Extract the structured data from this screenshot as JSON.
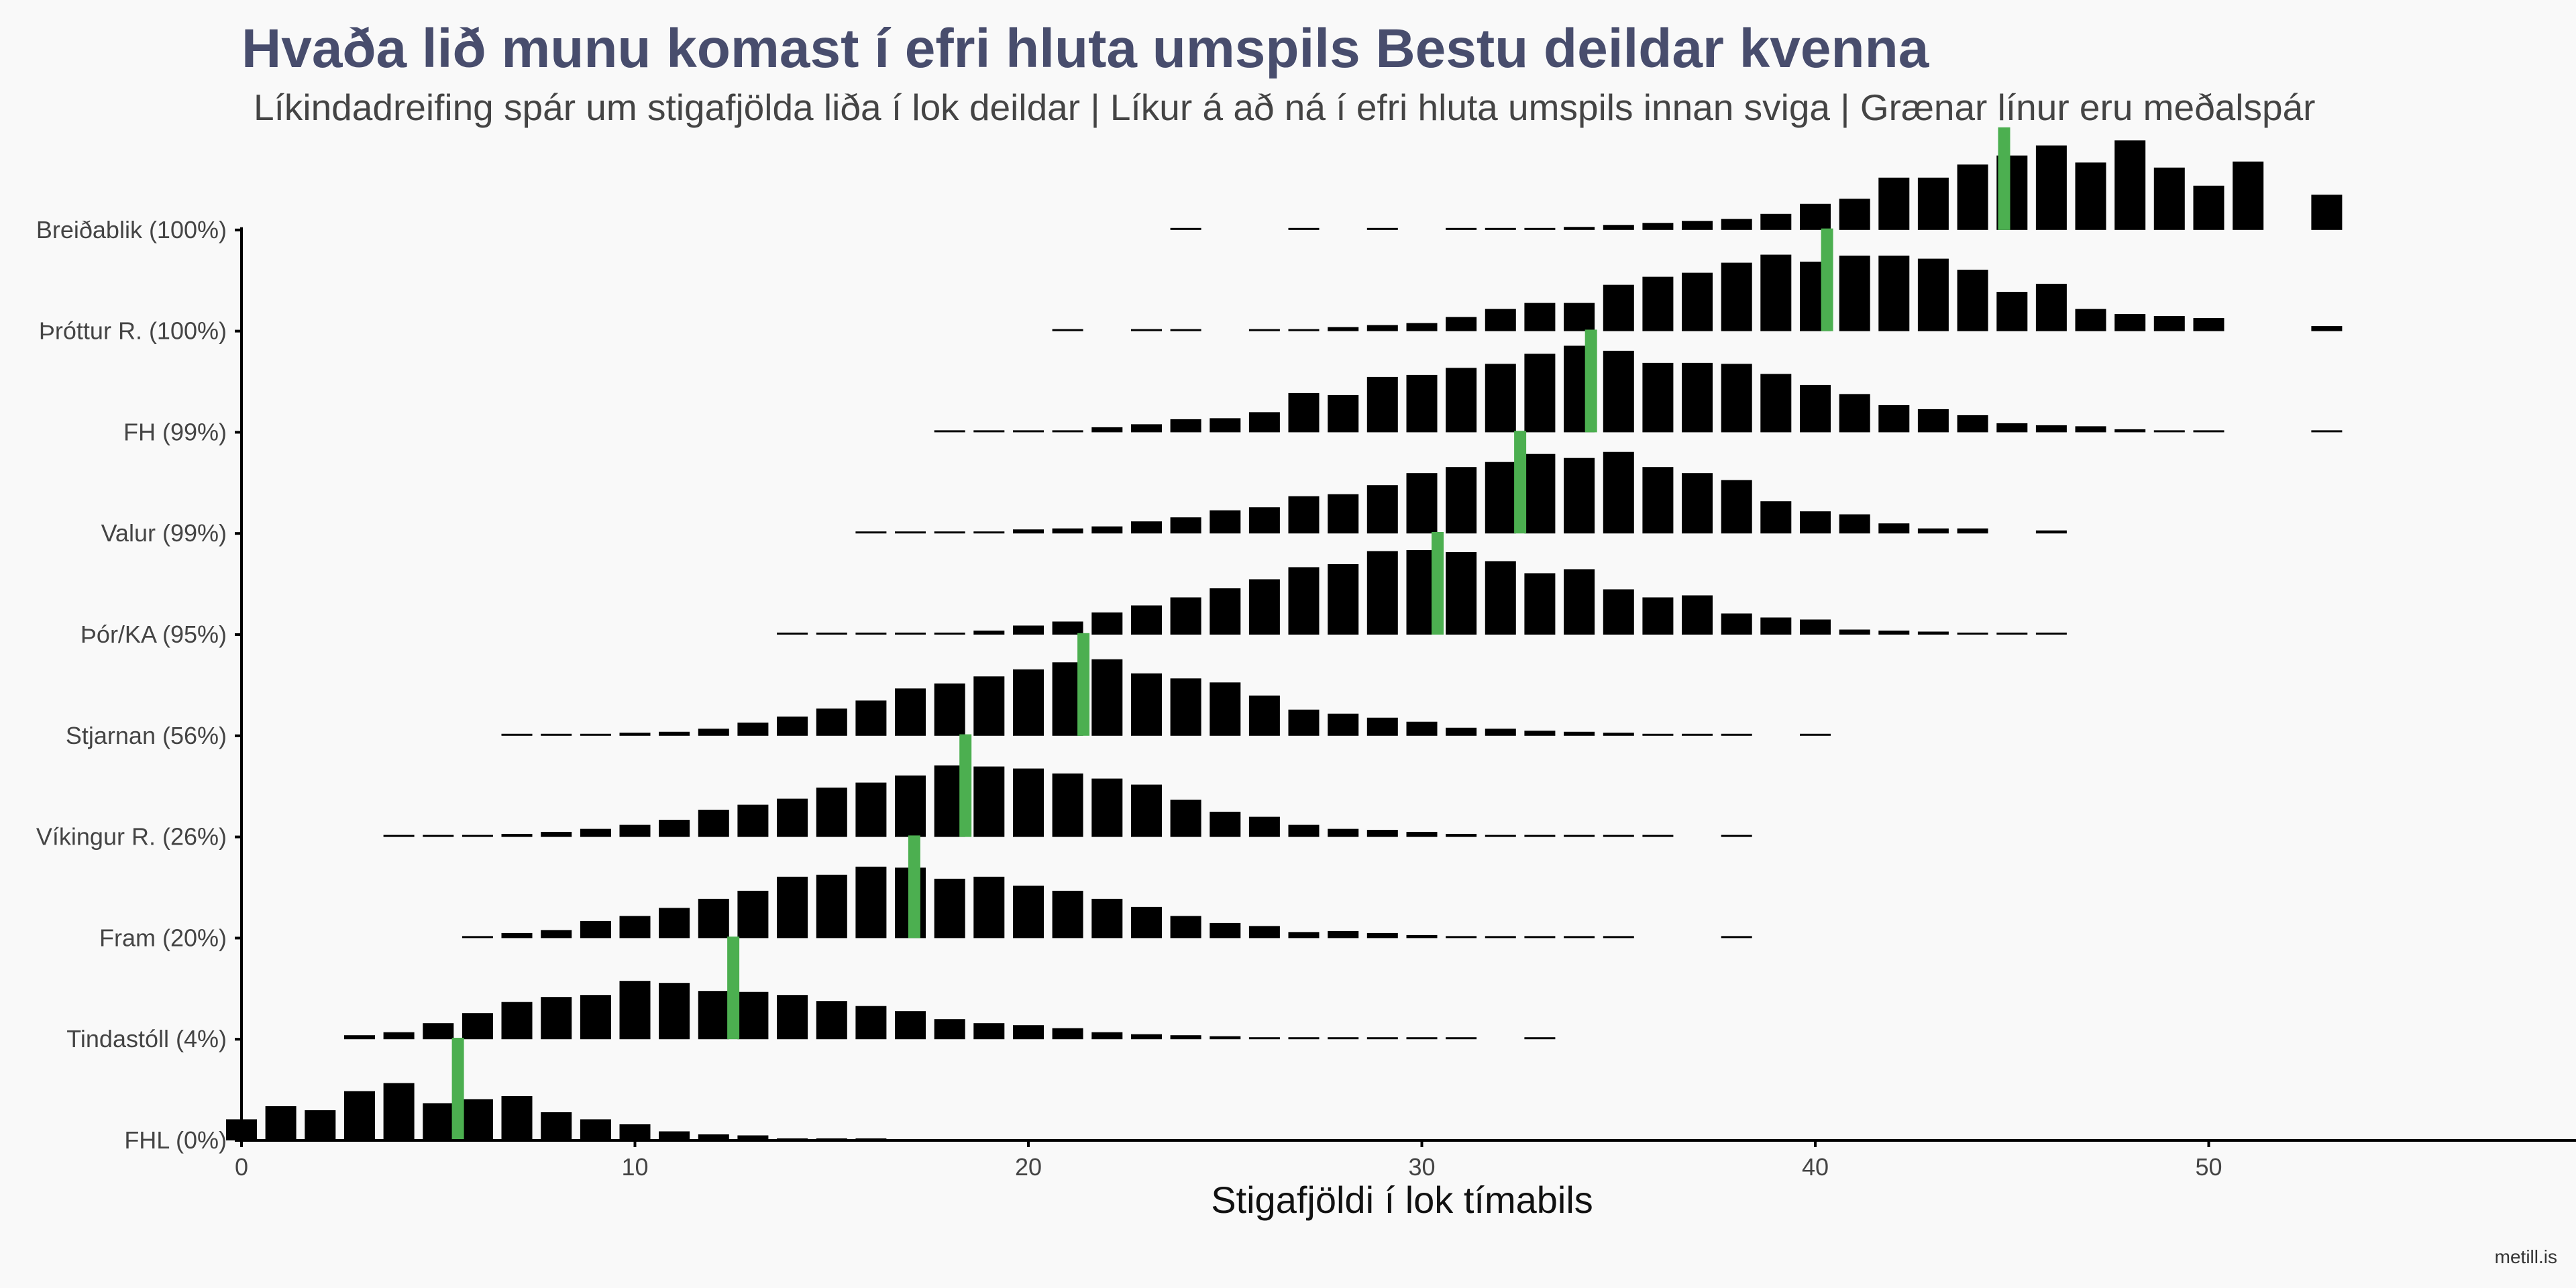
{
  "chart_data": {
    "type": "bar",
    "title": "Hvaða lið munu komast í efri hluta umspils Bestu deildar kvenna",
    "subtitle": "Líkindadreifing spár um stigafjölda liða í lok deildar | Líkur á að ná í efri hluta umspils innan sviga | Grænar línur eru meðalspár",
    "xlabel": "Stigafjöldi í lok tímabils",
    "ylabel": "",
    "xlim": [
      0,
      59
    ],
    "x_ticks": [
      0,
      10,
      20,
      30,
      40,
      50
    ],
    "caption": "metill.is",
    "colors": {
      "bars": "#000000",
      "mean_line": "#4caf50",
      "background": "#f9f9f9",
      "title": "#484d6d"
    },
    "value_unit": "relative probability (0-1, scaled to tallest bar per team)",
    "series": [
      {
        "name": "Breiðablik (100%)",
        "mean": 44.8,
        "dist": {
          "24": 0.008,
          "27": 0.008,
          "29": 0.008,
          "31": 0.01,
          "32": 0.01,
          "33": 0.018,
          "34": 0.03,
          "35": 0.05,
          "36": 0.07,
          "37": 0.09,
          "38": 0.11,
          "39": 0.16,
          "40": 0.26,
          "41": 0.31,
          "42": 0.52,
          "43": 0.52,
          "44": 0.65,
          "45": 0.74,
          "46": 0.84,
          "47": 0.67,
          "48": 0.89,
          "49": 0.62,
          "50": 0.44,
          "51": 0.68,
          "53": 0.35
        }
      },
      {
        "name": "Þróttur R. (100%)",
        "mean": 40.3,
        "dist": {
          "21": 0.008,
          "23": 0.008,
          "24": 0.008,
          "26": 0.01,
          "27": 0.02,
          "28": 0.04,
          "29": 0.06,
          "30": 0.08,
          "31": 0.14,
          "32": 0.22,
          "33": 0.28,
          "34": 0.28,
          "35": 0.46,
          "36": 0.54,
          "37": 0.58,
          "38": 0.68,
          "39": 0.76,
          "40": 0.69,
          "41": 0.75,
          "42": 0.75,
          "43": 0.72,
          "44": 0.61,
          "45": 0.39,
          "46": 0.47,
          "47": 0.22,
          "48": 0.17,
          "49": 0.15,
          "50": 0.13,
          "53": 0.05
        }
      },
      {
        "name": "FH (99%)",
        "mean": 34.3,
        "dist": {
          "18": 0.008,
          "19": 0.008,
          "20": 0.02,
          "21": 0.02,
          "22": 0.05,
          "23": 0.08,
          "24": 0.13,
          "25": 0.14,
          "26": 0.2,
          "27": 0.39,
          "28": 0.37,
          "29": 0.55,
          "30": 0.57,
          "31": 0.64,
          "32": 0.68,
          "33": 0.78,
          "34": 0.86,
          "35": 0.81,
          "36": 0.69,
          "37": 0.69,
          "38": 0.68,
          "39": 0.58,
          "40": 0.47,
          "41": 0.38,
          "42": 0.27,
          "43": 0.23,
          "44": 0.17,
          "45": 0.09,
          "46": 0.07,
          "47": 0.06,
          "48": 0.03,
          "49": 0.02,
          "50": 0.008,
          "53": 0.008
        }
      },
      {
        "name": "Valur (99%)",
        "mean": 32.5,
        "dist": {
          "16": 0.008,
          "17": 0.008,
          "18": 0.01,
          "19": 0.02,
          "20": 0.04,
          "21": 0.05,
          "22": 0.07,
          "23": 0.12,
          "24": 0.16,
          "25": 0.23,
          "26": 0.26,
          "27": 0.37,
          "28": 0.39,
          "29": 0.48,
          "30": 0.6,
          "31": 0.66,
          "32": 0.71,
          "33": 0.79,
          "34": 0.75,
          "35": 0.81,
          "36": 0.66,
          "37": 0.6,
          "38": 0.53,
          "39": 0.32,
          "40": 0.22,
          "41": 0.19,
          "42": 0.1,
          "43": 0.05,
          "44": 0.05,
          "46": 0.03
        }
      },
      {
        "name": "Þór/KA (95%)",
        "mean": 30.4,
        "dist": {
          "14": 0.008,
          "15": 0.008,
          "16": 0.008,
          "17": 0.01,
          "18": 0.02,
          "19": 0.04,
          "20": 0.09,
          "21": 0.13,
          "22": 0.22,
          "23": 0.29,
          "24": 0.37,
          "25": 0.46,
          "26": 0.55,
          "27": 0.67,
          "28": 0.7,
          "29": 0.83,
          "30": 0.84,
          "31": 0.82,
          "32": 0.73,
          "33": 0.61,
          "34": 0.65,
          "35": 0.45,
          "36": 0.37,
          "37": 0.39,
          "38": 0.21,
          "39": 0.17,
          "40": 0.15,
          "41": 0.05,
          "42": 0.04,
          "43": 0.03,
          "44": 0.02,
          "45": 0.02,
          "46": 0.02
        }
      },
      {
        "name": "Stjarnan (56%)",
        "mean": 21.4,
        "dist": {
          "7": 0.008,
          "8": 0.01,
          "9": 0.02,
          "10": 0.03,
          "11": 0.04,
          "12": 0.07,
          "13": 0.13,
          "14": 0.19,
          "15": 0.27,
          "16": 0.35,
          "17": 0.47,
          "18": 0.52,
          "19": 0.59,
          "20": 0.66,
          "21": 0.73,
          "22": 0.76,
          "23": 0.62,
          "24": 0.57,
          "25": 0.53,
          "26": 0.4,
          "27": 0.26,
          "28": 0.22,
          "29": 0.18,
          "30": 0.14,
          "31": 0.08,
          "32": 0.07,
          "33": 0.05,
          "34": 0.04,
          "35": 0.03,
          "36": 0.02,
          "37": 0.01,
          "38": 0.008,
          "40": 0.008
        }
      },
      {
        "name": "Víkingur R. (26%)",
        "mean": 18.4,
        "dist": {
          "4": 0.01,
          "5": 0.01,
          "6": 0.02,
          "7": 0.03,
          "8": 0.05,
          "9": 0.08,
          "10": 0.12,
          "11": 0.17,
          "12": 0.27,
          "13": 0.32,
          "14": 0.38,
          "15": 0.49,
          "16": 0.54,
          "17": 0.61,
          "18": 0.71,
          "19": 0.7,
          "20": 0.68,
          "21": 0.63,
          "22": 0.58,
          "23": 0.52,
          "24": 0.37,
          "25": 0.25,
          "26": 0.2,
          "27": 0.12,
          "28": 0.08,
          "29": 0.07,
          "30": 0.05,
          "31": 0.03,
          "32": 0.02,
          "33": 0.01,
          "34": 0.008,
          "35": 0.008,
          "36": 0.008,
          "38": 0.008
        }
      },
      {
        "name": "Fram (20%)",
        "mean": 17.1,
        "dist": {
          "6": 0.02,
          "7": 0.05,
          "8": 0.08,
          "9": 0.17,
          "10": 0.22,
          "11": 0.3,
          "12": 0.39,
          "13": 0.47,
          "14": 0.61,
          "15": 0.63,
          "16": 0.71,
          "17": 0.7,
          "18": 0.59,
          "19": 0.61,
          "20": 0.52,
          "21": 0.47,
          "22": 0.39,
          "23": 0.31,
          "24": 0.22,
          "25": 0.15,
          "26": 0.12,
          "27": 0.06,
          "28": 0.07,
          "29": 0.05,
          "30": 0.03,
          "31": 0.02,
          "32": 0.02,
          "33": 0.01,
          "34": 0.01,
          "35": 0.008,
          "38": 0.008
        }
      },
      {
        "name": "Tindastóll (4%)",
        "mean": 12.5,
        "dist": {
          "3": 0.04,
          "4": 0.07,
          "5": 0.16,
          "6": 0.26,
          "7": 0.37,
          "8": 0.42,
          "9": 0.44,
          "10": 0.58,
          "11": 0.56,
          "12": 0.48,
          "13": 0.47,
          "14": 0.44,
          "15": 0.38,
          "16": 0.33,
          "17": 0.28,
          "18": 0.2,
          "19": 0.16,
          "20": 0.14,
          "21": 0.11,
          "22": 0.07,
          "23": 0.05,
          "24": 0.04,
          "25": 0.03,
          "26": 0.02,
          "27": 0.02,
          "28": 0.01,
          "29": 0.01,
          "30": 0.008,
          "31": 0.008,
          "33": 0.008
        }
      },
      {
        "name": "FHL (0%)",
        "mean": 5.5,
        "dist": {
          "0": 0.21,
          "1": 0.34,
          "2": 0.3,
          "3": 0.49,
          "4": 0.57,
          "5": 0.37,
          "6": 0.41,
          "7": 0.44,
          "8": 0.28,
          "9": 0.21,
          "10": 0.16,
          "11": 0.09,
          "12": 0.06,
          "13": 0.05,
          "14": 0.02,
          "15": 0.008,
          "16": 0.008
        }
      }
    ]
  }
}
